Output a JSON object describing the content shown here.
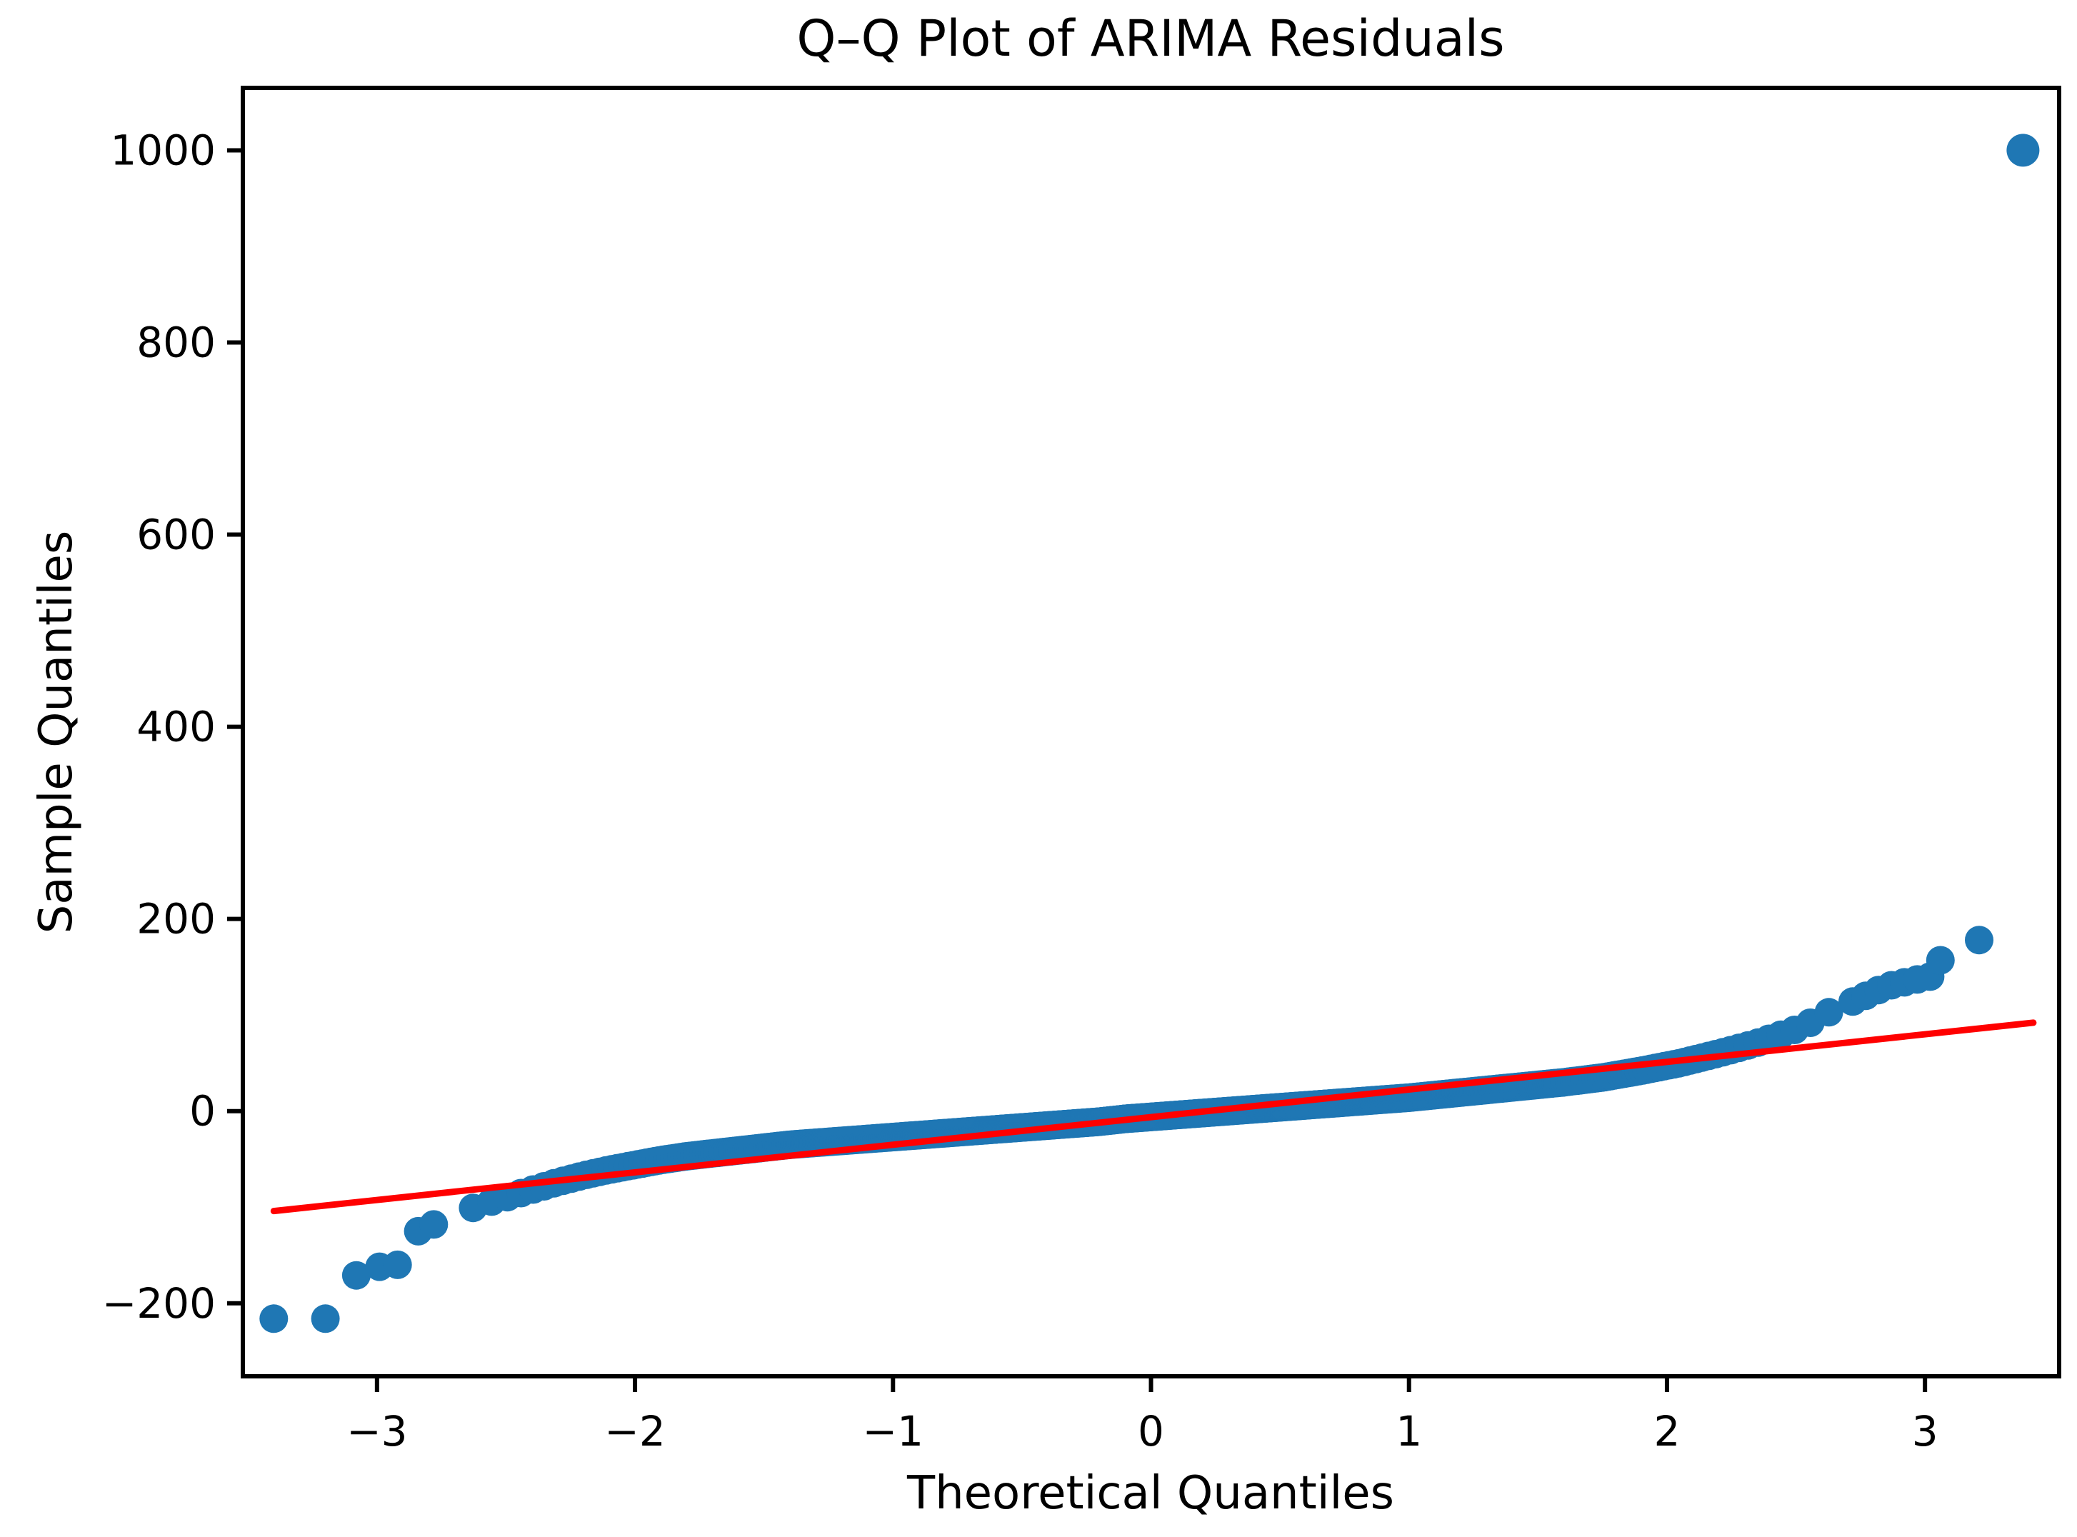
{
  "chart_data": {
    "type": "scatter",
    "title": "Q–Q Plot of ARIMA Residuals",
    "xlabel": "Theoretical Quantiles",
    "ylabel": "Sample Quantiles",
    "xlim": [
      -3.52,
      3.52
    ],
    "ylim": [
      -276,
      1065
    ],
    "grid": false,
    "legend": false,
    "xticks": [
      {
        "value": -3,
        "label": "−3"
      },
      {
        "value": -2,
        "label": "−2"
      },
      {
        "value": -1,
        "label": "−1"
      },
      {
        "value": 0,
        "label": "0"
      },
      {
        "value": 1,
        "label": "1"
      },
      {
        "value": 2,
        "label": "2"
      },
      {
        "value": 3,
        "label": "3"
      }
    ],
    "yticks": [
      {
        "value": 1000,
        "label": "1000"
      },
      {
        "value": 800,
        "label": "800"
      },
      {
        "value": 600,
        "label": "600"
      },
      {
        "value": 400,
        "label": "400"
      },
      {
        "value": 200,
        "label": "200"
      },
      {
        "value": 0,
        "label": "0"
      },
      {
        "value": -200,
        "label": "−200"
      }
    ],
    "colors": {
      "point": "#1f77b4",
      "fit_line": "#ff0000",
      "axes": "#000000",
      "background": "#ffffff"
    },
    "marker_radius_px": 20,
    "outlier_marker_radius_px": 23,
    "fit_line": {
      "x1": -3.4,
      "y1": -104,
      "x2": 3.42,
      "y2": 92
    },
    "band": {
      "n_points": 990,
      "p_range": [
        0.0038,
        0.9962
      ],
      "x_range": [
        -2.72,
        2.67
      ],
      "curve_points": [
        [
          -2.72,
          -112
        ],
        [
          -2.65,
          -103
        ],
        [
          -2.58,
          -96
        ],
        [
          -2.5,
          -90
        ],
        [
          -2.4,
          -82
        ],
        [
          -2.3,
          -74
        ],
        [
          -2.2,
          -67
        ],
        [
          -2.1,
          -61
        ],
        [
          -2.0,
          -56
        ],
        [
          -1.9,
          -51
        ],
        [
          -1.8,
          -47
        ],
        [
          -1.7,
          -44
        ],
        [
          -1.6,
          -41
        ],
        [
          -1.5,
          -38
        ],
        [
          -1.4,
          -35
        ],
        [
          -1.3,
          -33
        ],
        [
          -1.2,
          -31
        ],
        [
          -1.1,
          -29
        ],
        [
          -1.0,
          -27
        ],
        [
          -0.9,
          -25
        ],
        [
          -0.8,
          -23
        ],
        [
          -0.7,
          -21
        ],
        [
          -0.6,
          -19
        ],
        [
          -0.5,
          -17
        ],
        [
          -0.4,
          -15
        ],
        [
          -0.3,
          -13
        ],
        [
          -0.2,
          -11
        ],
        [
          -0.1,
          -8
        ],
        [
          0.0,
          -6
        ],
        [
          0.1,
          -4
        ],
        [
          0.25,
          -1
        ],
        [
          0.4,
          2
        ],
        [
          0.55,
          5
        ],
        [
          0.7,
          8
        ],
        [
          0.85,
          11
        ],
        [
          1.0,
          14
        ],
        [
          1.15,
          18
        ],
        [
          1.3,
          22
        ],
        [
          1.45,
          26
        ],
        [
          1.6,
          30
        ],
        [
          1.75,
          35
        ],
        [
          1.9,
          42
        ],
        [
          2.05,
          50
        ],
        [
          2.2,
          60
        ],
        [
          2.35,
          71
        ],
        [
          2.5,
          85
        ],
        [
          2.58,
          95
        ],
        [
          2.67,
          110
        ]
      ]
    },
    "low_tail_points": [
      [
        -3.4,
        -216
      ],
      [
        -3.2,
        -216
      ],
      [
        -3.08,
        -171
      ],
      [
        -2.99,
        -162
      ],
      [
        -2.92,
        -160
      ],
      [
        -2.84,
        -125
      ],
      [
        -2.78,
        -118
      ]
    ],
    "high_tail_points": [
      [
        2.72,
        114
      ],
      [
        2.77,
        120
      ],
      [
        2.82,
        126
      ],
      [
        2.87,
        131
      ],
      [
        2.92,
        134
      ],
      [
        2.97,
        137
      ],
      [
        3.02,
        140
      ],
      [
        3.06,
        157
      ],
      [
        3.21,
        178
      ]
    ],
    "outlier_point": [
      3.38,
      1000
    ]
  }
}
